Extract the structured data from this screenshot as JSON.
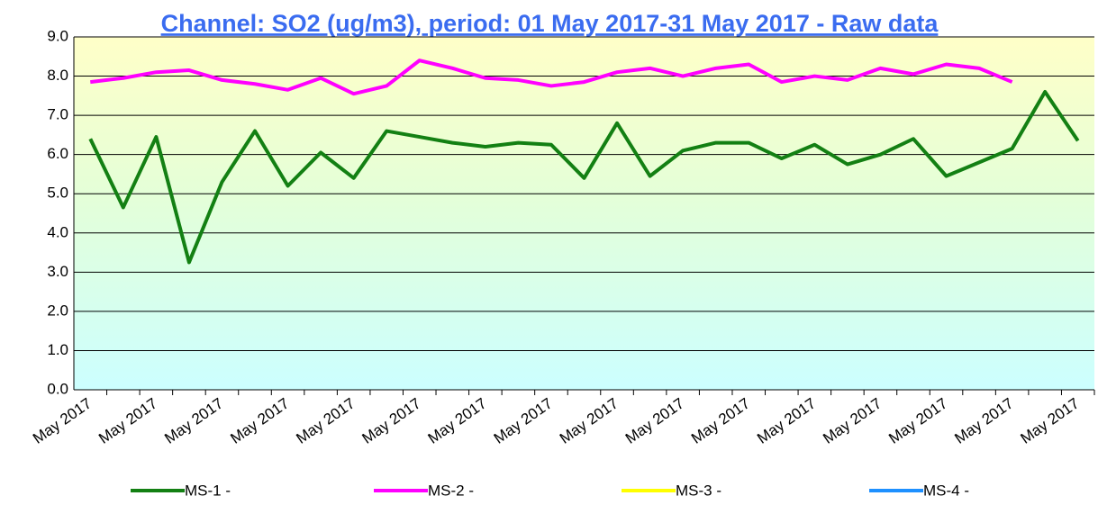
{
  "chart_data": {
    "type": "line",
    "title": "Channel: SO2 (ug/m3), period: 01 May 2017-31 May 2017 - Raw data",
    "categories": [
      "May 2017",
      null,
      "May 2017",
      null,
      "May 2017",
      null,
      "May 2017",
      null,
      "May 2017",
      null,
      "May 2017",
      null,
      "May 2017",
      null,
      "May 2017",
      null,
      "May 2017",
      null,
      "May 2017",
      null,
      "May 2017",
      null,
      "May 2017",
      null,
      "May 2017",
      null,
      "May 2017",
      null,
      "May 2017",
      null,
      "May 2017"
    ],
    "ylim": [
      0,
      9
    ],
    "yticks": [
      {
        "value": 0,
        "label": "0.0"
      },
      {
        "value": 1,
        "label": "1.0"
      },
      {
        "value": 2,
        "label": "2.0"
      },
      {
        "value": 3,
        "label": "3.0"
      },
      {
        "value": 4,
        "label": "4.0"
      },
      {
        "value": 5,
        "label": "5.0"
      },
      {
        "value": 6,
        "label": "6.0"
      },
      {
        "value": 7,
        "label": "7.0"
      },
      {
        "value": 8,
        "label": "8.0"
      },
      {
        "value": 9,
        "label": "9.0"
      }
    ],
    "grid": true,
    "legend": "bottom",
    "series": [
      {
        "name": "MS-1 -",
        "color": "#138013",
        "values": [
          6.4,
          4.65,
          6.45,
          3.25,
          5.3,
          6.6,
          5.2,
          6.05,
          5.4,
          6.6,
          6.45,
          6.3,
          6.2,
          6.3,
          6.25,
          5.4,
          6.8,
          5.45,
          6.1,
          6.3,
          6.3,
          5.9,
          6.25,
          5.75,
          6.0,
          6.4,
          5.45,
          5.8,
          6.15,
          7.6,
          6.35
        ]
      },
      {
        "name": "MS-2 -",
        "color": "#ff00ff",
        "values": [
          7.85,
          7.95,
          8.1,
          8.15,
          7.9,
          7.8,
          7.65,
          7.95,
          7.55,
          7.75,
          8.4,
          8.2,
          7.95,
          7.9,
          7.75,
          7.85,
          8.1,
          8.2,
          8.0,
          8.2,
          8.3,
          7.85,
          8.0,
          7.9,
          8.2,
          8.05,
          8.3,
          8.2,
          7.85,
          null,
          null
        ]
      },
      {
        "name": "MS-3 -",
        "color": "#ffff00",
        "values": [
          null,
          null,
          null,
          null,
          null,
          null,
          null,
          null,
          null,
          null,
          null,
          null,
          null,
          null,
          null,
          null,
          null,
          null,
          null,
          null,
          null,
          null,
          null,
          null,
          null,
          null,
          null,
          null,
          null,
          null,
          null
        ]
      },
      {
        "name": "MS-4 -",
        "color": "#1e90ff",
        "values": [
          null,
          null,
          null,
          null,
          null,
          null,
          null,
          null,
          null,
          null,
          null,
          null,
          null,
          null,
          null,
          null,
          null,
          null,
          null,
          null,
          null,
          null,
          null,
          null,
          null,
          null,
          null,
          null,
          null,
          null,
          null
        ]
      }
    ]
  }
}
